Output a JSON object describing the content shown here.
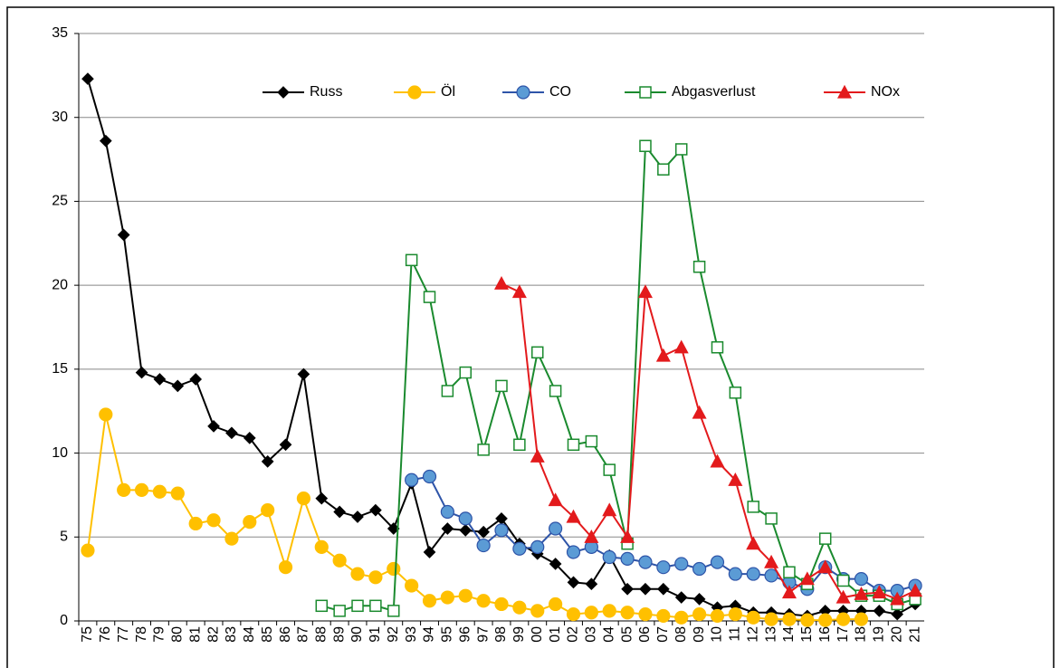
{
  "chart_data": {
    "type": "line",
    "categories": [
      "75",
      "76",
      "77",
      "78",
      "79",
      "80",
      "81",
      "82",
      "83",
      "84",
      "85",
      "86",
      "87",
      "88",
      "89",
      "90",
      "91",
      "92",
      "93",
      "94",
      "95",
      "96",
      "97",
      "98",
      "99",
      "00",
      "01",
      "02",
      "03",
      "04",
      "05",
      "06",
      "07",
      "08",
      "09",
      "10",
      "11",
      "12",
      "13",
      "14",
      "15",
      "16",
      "17",
      "18",
      "19",
      "20",
      "21"
    ],
    "series": [
      {
        "name": "Russ",
        "color": "#000000",
        "marker": "diamond",
        "values": [
          32.3,
          28.6,
          23.0,
          14.8,
          14.4,
          14.0,
          14.4,
          11.6,
          11.2,
          10.9,
          9.5,
          10.5,
          14.7,
          7.3,
          6.5,
          6.2,
          6.6,
          5.5,
          8.2,
          4.1,
          5.5,
          5.4,
          5.3,
          6.1,
          4.6,
          4.0,
          3.4,
          2.3,
          2.2,
          3.9,
          1.9,
          1.9,
          1.9,
          1.4,
          1.3,
          0.8,
          0.9,
          0.5,
          0.5,
          0.4,
          0.3,
          0.6,
          0.6,
          0.6,
          0.6,
          0.4,
          1.0
        ]
      },
      {
        "name": "Öl",
        "color": "#ffc000",
        "marker": "circle",
        "values": [
          4.2,
          12.3,
          7.8,
          7.8,
          7.7,
          7.6,
          5.8,
          6.0,
          4.9,
          5.9,
          6.6,
          3.2,
          7.3,
          4.4,
          3.6,
          2.8,
          2.6,
          3.1,
          2.1,
          1.2,
          1.4,
          1.5,
          1.2,
          1.0,
          0.8,
          0.6,
          1.0,
          0.4,
          0.5,
          0.6,
          0.5,
          0.4,
          0.3,
          0.2,
          0.4,
          0.3,
          0.4,
          0.2,
          0.1,
          0.1,
          0.05,
          0.05,
          0.1,
          0.1,
          null,
          null,
          null
        ]
      },
      {
        "name": "CO",
        "color": "#2e54a8",
        "fill": "#5b9bd5",
        "marker": "circle",
        "values": [
          null,
          null,
          null,
          null,
          null,
          null,
          null,
          null,
          null,
          null,
          null,
          null,
          null,
          null,
          null,
          null,
          null,
          null,
          8.4,
          8.6,
          6.5,
          6.1,
          4.5,
          5.4,
          4.3,
          4.4,
          5.5,
          4.1,
          4.4,
          3.8,
          3.7,
          3.5,
          3.2,
          3.4,
          3.1,
          3.5,
          2.8,
          2.8,
          2.7,
          2.3,
          1.9,
          3.2,
          2.5,
          2.5,
          1.8,
          1.8,
          2.1
        ]
      },
      {
        "name": "Abgasverlust",
        "color": "#1a8a2e",
        "fill": "#ffffff",
        "marker": "square",
        "values": [
          null,
          null,
          null,
          null,
          null,
          null,
          null,
          null,
          null,
          null,
          null,
          null,
          null,
          0.9,
          0.6,
          0.9,
          0.9,
          0.6,
          21.5,
          19.3,
          13.7,
          14.8,
          10.2,
          14.0,
          10.5,
          16.0,
          13.7,
          10.5,
          10.7,
          9.0,
          4.6,
          28.3,
          26.9,
          28.1,
          21.1,
          16.3,
          13.6,
          6.8,
          6.1,
          2.9,
          2.2,
          4.9,
          2.4,
          1.5,
          1.5,
          1.0,
          1.3
        ]
      },
      {
        "name": "NOx",
        "color": "#e31a1c",
        "marker": "triangle",
        "values": [
          null,
          null,
          null,
          null,
          null,
          null,
          null,
          null,
          null,
          null,
          null,
          null,
          null,
          null,
          null,
          null,
          null,
          null,
          null,
          null,
          null,
          null,
          null,
          20.1,
          19.6,
          9.8,
          7.2,
          6.2,
          5.0,
          6.6,
          5.0,
          19.6,
          15.8,
          16.3,
          12.4,
          9.5,
          8.4,
          4.6,
          3.5,
          1.7,
          2.5,
          3.2,
          1.4,
          1.6,
          1.7,
          1.3,
          1.8
        ]
      }
    ],
    "ylim": [
      0,
      35
    ],
    "yticks": [
      0,
      5,
      10,
      15,
      20,
      25,
      30,
      35
    ],
    "grid": true,
    "legend": "top"
  }
}
